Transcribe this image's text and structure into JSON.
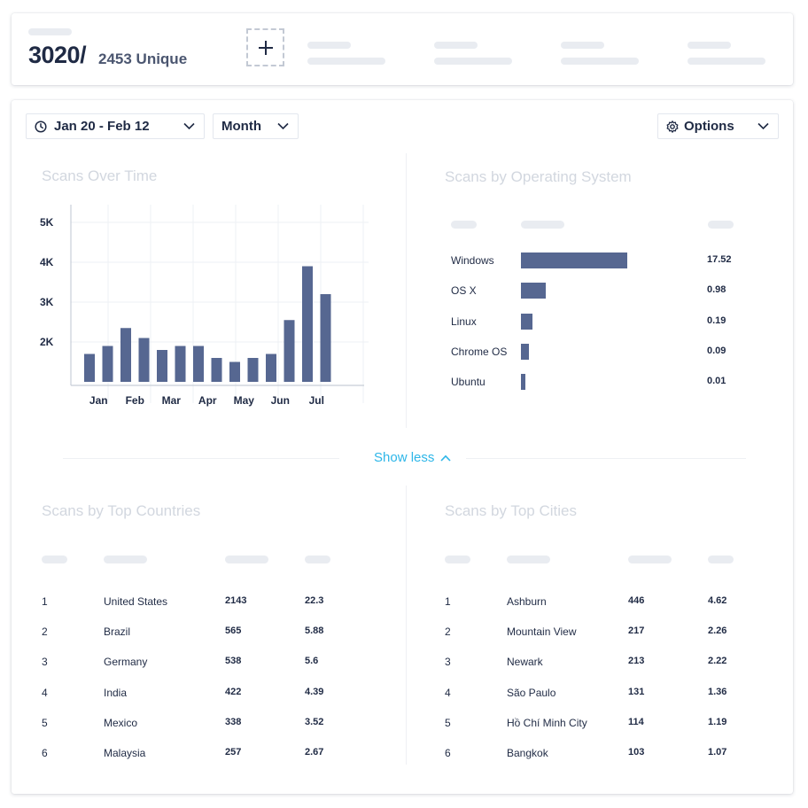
{
  "summary": {
    "total": "3020/",
    "unique": "2453 Unique"
  },
  "filters": {
    "date_range": "Jan 20 - Feb 12",
    "interval": "Month",
    "options": "Options"
  },
  "scans_over_time": {
    "title": "Scans Over Time"
  },
  "chart_data": {
    "type": "bar",
    "title": "Scans Over Time",
    "y_ticks": [
      "5K",
      "4K",
      "3K",
      "2K"
    ],
    "x_ticks": [
      "Jan",
      "Feb",
      "Mar",
      "Apr",
      "May",
      "Jun",
      "Jul"
    ],
    "values": [
      1700,
      1900,
      2350,
      2100,
      1800,
      1900,
      1900,
      1600,
      1500,
      1600,
      1700,
      2550,
      3900,
      3200
    ],
    "ylim": [
      1000,
      5000
    ],
    "bar_color": "#566791",
    "grid": true
  },
  "os": {
    "title": "Scans by Operating System",
    "bar_color": "#566791",
    "rows": [
      {
        "name": "Windows",
        "value": "17.52",
        "share": 17.52
      },
      {
        "name": "OS X",
        "value": "0.98",
        "share": 0.98
      },
      {
        "name": "Linux",
        "value": "0.19",
        "share": 0.19
      },
      {
        "name": "Chrome OS",
        "value": "0.09",
        "share": 0.09
      },
      {
        "name": "Ubuntu",
        "value": "0.01",
        "share": 0.01
      }
    ]
  },
  "show_less": "Show less",
  "countries": {
    "title": "Scans by Top Countries",
    "rows": [
      {
        "rank": "1",
        "name": "United States",
        "count": "2143",
        "pct": "22.3"
      },
      {
        "rank": "2",
        "name": "Brazil",
        "count": "565",
        "pct": "5.88"
      },
      {
        "rank": "3",
        "name": "Germany",
        "count": "538",
        "pct": "5.6"
      },
      {
        "rank": "4",
        "name": "India",
        "count": "422",
        "pct": "4.39"
      },
      {
        "rank": "5",
        "name": "Mexico",
        "count": "338",
        "pct": "3.52"
      },
      {
        "rank": "6",
        "name": "Malaysia",
        "count": "257",
        "pct": "2.67"
      }
    ]
  },
  "cities": {
    "title": "Scans by Top Cities",
    "rows": [
      {
        "rank": "1",
        "name": "Ashburn",
        "count": "446",
        "pct": "4.62"
      },
      {
        "rank": "2",
        "name": "Mountain View",
        "count": "217",
        "pct": "2.26"
      },
      {
        "rank": "3",
        "name": "Newark",
        "count": "213",
        "pct": "2.22"
      },
      {
        "rank": "4",
        "name": "São Paulo",
        "count": "131",
        "pct": "1.36"
      },
      {
        "rank": "5",
        "name": "Hồ Chí Minh City",
        "count": "114",
        "pct": "1.19"
      },
      {
        "rank": "6",
        "name": "Bangkok",
        "count": "103",
        "pct": "1.07"
      }
    ]
  }
}
